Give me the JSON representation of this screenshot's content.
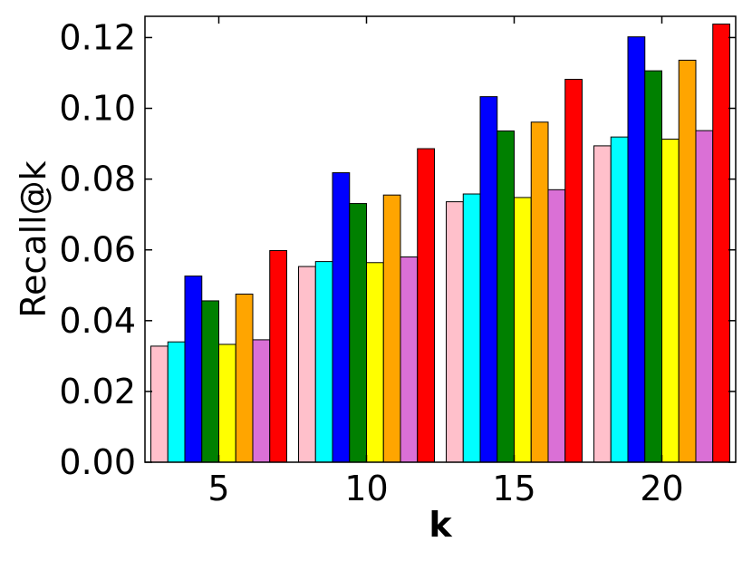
{
  "chart_data": {
    "type": "bar",
    "title": "",
    "xlabel": "k",
    "ylabel": "Recall@k",
    "categories": [
      "5",
      "10",
      "15",
      "20"
    ],
    "ylim": [
      0.0,
      0.126
    ],
    "yticks": [
      "0.00",
      "0.02",
      "0.04",
      "0.06",
      "0.08",
      "0.10",
      "0.12"
    ],
    "ytick_values": [
      0.0,
      0.02,
      0.04,
      0.06,
      0.08,
      0.1,
      0.12
    ],
    "legend": "none",
    "grid": false,
    "series": [
      {
        "color": "#ffc0cb",
        "values": [
          0.0328,
          0.0553,
          0.0736,
          0.0894
        ]
      },
      {
        "color": "#00ffff",
        "values": [
          0.034,
          0.0567,
          0.0758,
          0.0919
        ]
      },
      {
        "color": "#0000ff",
        "values": [
          0.0526,
          0.0818,
          0.1033,
          0.1202
        ]
      },
      {
        "color": "#008000",
        "values": [
          0.0456,
          0.0731,
          0.0936,
          0.1106
        ]
      },
      {
        "color": "#ffff00",
        "values": [
          0.0333,
          0.0564,
          0.0748,
          0.0913
        ]
      },
      {
        "color": "#ffa500",
        "values": [
          0.0475,
          0.0755,
          0.0961,
          0.1136
        ]
      },
      {
        "color": "#da70d6",
        "values": [
          0.0346,
          0.058,
          0.077,
          0.0937
        ]
      },
      {
        "color": "#ff0000",
        "values": [
          0.0598,
          0.0886,
          0.1082,
          0.1238
        ]
      }
    ]
  }
}
